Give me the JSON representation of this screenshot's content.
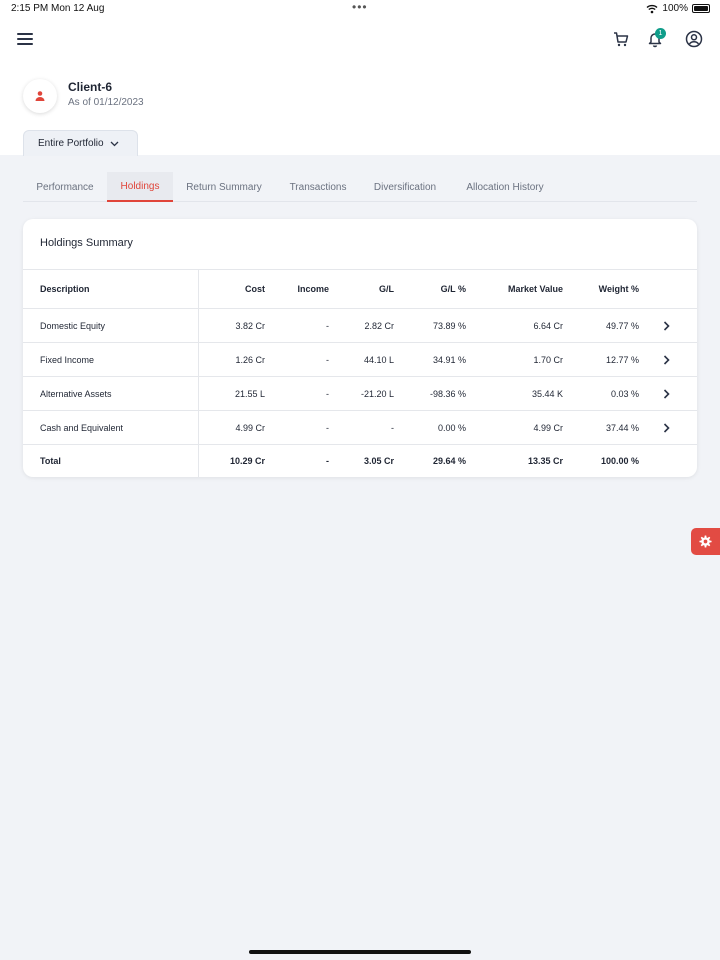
{
  "status_bar": {
    "time": "2:15 PM",
    "date": "Mon 12 Aug",
    "dots": "•••",
    "battery": "100%"
  },
  "header": {
    "notification_count": "1"
  },
  "client": {
    "name": "Client-6",
    "as_of": "As of 01/12/2023"
  },
  "portfolio_select": {
    "label": "Entire Portfolio"
  },
  "tabs": [
    {
      "label": "Performance"
    },
    {
      "label": "Holdings",
      "active": true
    },
    {
      "label": "Return Summary"
    },
    {
      "label": "Transactions"
    },
    {
      "label": "Diversification"
    },
    {
      "label": "Allocation History"
    }
  ],
  "holdings": {
    "title": "Holdings Summary",
    "columns": {
      "description": "Description",
      "cost": "Cost",
      "income": "Income",
      "gl": "G/L",
      "gl_pct": "G/L %",
      "market_value": "Market Value",
      "weight": "Weight %"
    },
    "rows": [
      {
        "description": "Domestic Equity",
        "cost": "3.82 Cr",
        "income": "-",
        "gl": "2.82 Cr",
        "gl_pct": "73.89 %",
        "market_value": "6.64 Cr",
        "weight": "49.77 %"
      },
      {
        "description": "Fixed Income",
        "cost": "1.26 Cr",
        "income": "-",
        "gl": "44.10 L",
        "gl_pct": "34.91 %",
        "market_value": "1.70 Cr",
        "weight": "12.77 %"
      },
      {
        "description": "Alternative Assets",
        "cost": "21.55 L",
        "income": "-",
        "gl": "-21.20 L",
        "gl_pct": "-98.36 %",
        "market_value": "35.44 K",
        "weight": "0.03 %"
      },
      {
        "description": "Cash and Equivalent",
        "cost": "4.99 Cr",
        "income": "-",
        "gl": "-",
        "gl_pct": "0.00 %",
        "market_value": "4.99 Cr",
        "weight": "37.44 %"
      }
    ],
    "total": {
      "description": "Total",
      "cost": "10.29 Cr",
      "income": "-",
      "gl": "3.05 Cr",
      "gl_pct": "29.64 %",
      "market_value": "13.35 Cr",
      "weight": "100.00 %"
    }
  },
  "colors": {
    "accent": "#e0453a",
    "badge": "#0f9d8a",
    "background": "#f1f3f7"
  }
}
